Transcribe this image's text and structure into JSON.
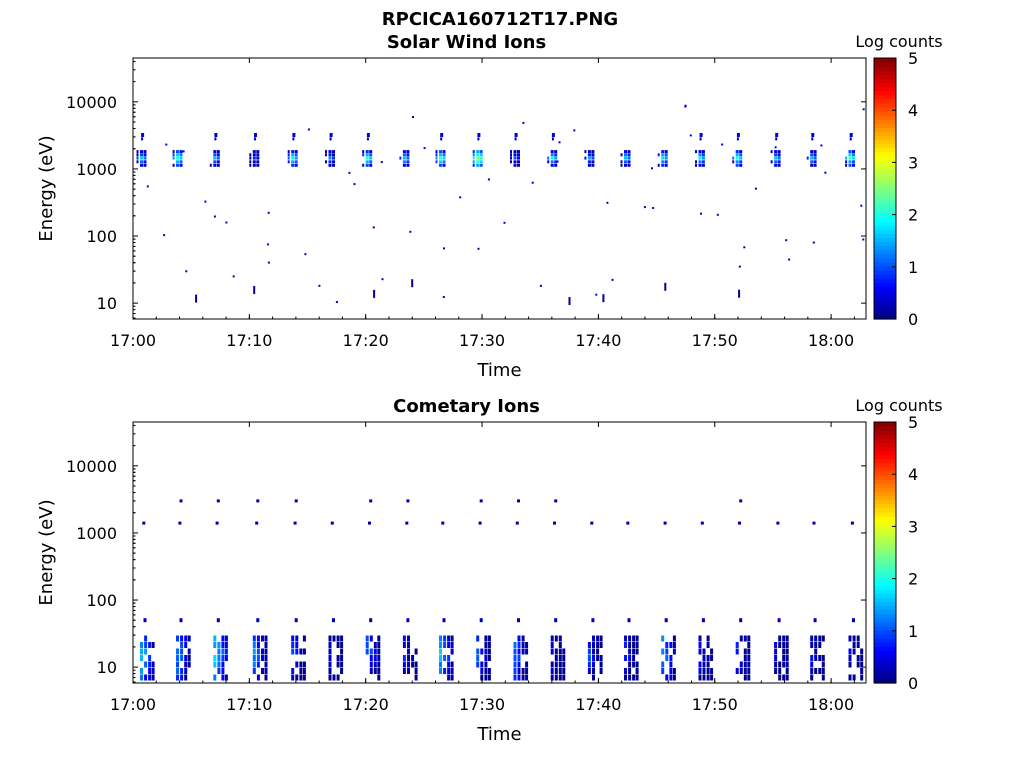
{
  "figure_title": "RPCICA160712T17.PNG",
  "colors": {
    "colormap": "jet",
    "axis": "#000000",
    "background": "#ffffff"
  },
  "chart_data": [
    {
      "type": "heatmap",
      "title": "Solar Wind Ions",
      "xlabel": "Time",
      "ylabel": "Energy (eV)",
      "yscale": "log",
      "xlim": [
        "17:00",
        "18:03"
      ],
      "ylim": [
        5.8,
        45000
      ],
      "x_ticks": [
        "17:00",
        "17:10",
        "17:20",
        "17:30",
        "17:40",
        "17:50",
        "18:00"
      ],
      "y_ticks": [
        10,
        100,
        1000,
        10000
      ],
      "y_tick_labels": [
        "10",
        "100",
        "1000",
        "10000"
      ],
      "colorbar": {
        "label": "Log counts",
        "ticks": [
          "0",
          "1",
          "2",
          "3",
          "4",
          "5"
        ],
        "range": [
          0,
          5
        ]
      },
      "sweeps_min": [
        0.6,
        3.7,
        6.9,
        10.3,
        13.6,
        16.8,
        20.0,
        23.2,
        26.3,
        29.5,
        32.7,
        35.9,
        39.1,
        42.2,
        45.4,
        48.6,
        51.8,
        55.1,
        58.2,
        61.5
      ],
      "peak_energy_eV": 1450,
      "peak_log_counts": [
        1.6,
        2.1,
        1.5,
        0.8,
        1.9,
        1.3,
        2.0,
        1.7,
        2.2,
        2.6,
        1.1,
        1.7,
        1.4,
        1.6,
        1.9,
        1.8,
        2.0,
        1.6,
        1.5,
        2.1
      ]
    },
    {
      "type": "heatmap",
      "title": "Cometary Ions",
      "xlabel": "Time",
      "ylabel": "Energy (eV)",
      "yscale": "log",
      "xlim": [
        "17:00",
        "18:03"
      ],
      "ylim": [
        5.8,
        45000
      ],
      "x_ticks": [
        "17:00",
        "17:10",
        "17:20",
        "17:30",
        "17:40",
        "17:50",
        "18:00"
      ],
      "y_ticks": [
        10,
        100,
        1000,
        10000
      ],
      "y_tick_labels": [
        "10",
        "100",
        "1000",
        "10000"
      ],
      "colorbar": {
        "label": "Log counts",
        "ticks": [
          "0",
          "1",
          "2",
          "3",
          "4",
          "5"
        ],
        "range": [
          0,
          5
        ]
      },
      "sweeps_min": [
        0.6,
        3.7,
        6.9,
        10.3,
        13.6,
        16.8,
        20.0,
        23.2,
        26.3,
        29.5,
        32.7,
        35.9,
        39.1,
        42.2,
        45.4,
        48.6,
        51.8,
        55.1,
        58.2,
        61.5
      ],
      "low_energy_band_eV": [
        7,
        28
      ],
      "peak_log_counts": [
        1.6,
        1.4,
        1.7,
        1.3,
        0.9,
        0.5,
        1.2,
        0.8,
        1.5,
        1.1,
        1.2,
        0.6,
        0.9,
        0.8,
        1.5,
        0.7,
        0.9,
        0.6,
        0.7,
        0.5
      ]
    }
  ]
}
